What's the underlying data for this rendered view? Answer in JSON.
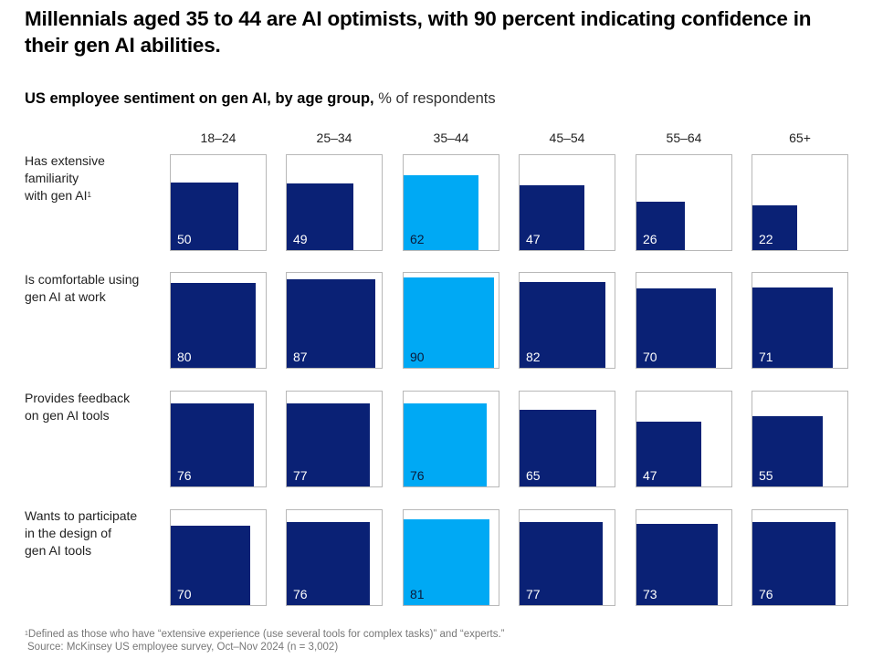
{
  "title": "Millennials aged 35 to 44 are AI optimists, with 90 percent indicating confidence in their gen AI abilities.",
  "subtitle": {
    "bold": "US employee sentiment on gen AI, by age group,",
    "unit": "% of respondents"
  },
  "colors": {
    "default": "#0a2175",
    "highlight": "#00a9f4",
    "label_on_default": "#ffffff",
    "label_on_highlight": "#0a1a3a",
    "cell_border": "#b8b8b8"
  },
  "chart_data": {
    "type": "heatmap",
    "encoding": "area-proportional squares (100% = full cell)",
    "title": "US employee sentiment on gen AI, by age group",
    "unit": "% of respondents",
    "categories": [
      "18–24",
      "25–34",
      "35–44",
      "45–54",
      "55–64",
      "65+"
    ],
    "highlight_category": "35–44",
    "rows": [
      {
        "label": "Has extensive familiarity with gen AI",
        "footnote_marker": "1",
        "values": [
          50,
          49,
          62,
          47,
          26,
          22
        ]
      },
      {
        "label": "Is comfortable using gen AI at work",
        "footnote_marker": "",
        "values": [
          80,
          87,
          90,
          82,
          70,
          71
        ]
      },
      {
        "label": "Provides feedback on gen AI tools",
        "footnote_marker": "",
        "values": [
          76,
          77,
          76,
          65,
          47,
          55
        ]
      },
      {
        "label": "Wants to participate in the design of gen AI tools",
        "footnote_marker": "",
        "values": [
          70,
          76,
          81,
          77,
          73,
          76
        ]
      }
    ],
    "value_range": [
      0,
      100
    ]
  },
  "row_label_lines": [
    [
      "Has extensive",
      "familiarity",
      "with gen AI"
    ],
    [
      "Is comfortable using",
      "gen AI at work"
    ],
    [
      "Provides feedback",
      "on gen AI tools"
    ],
    [
      "Wants to participate",
      "in the design of",
      "gen AI tools"
    ]
  ],
  "footnotes": {
    "note_marker": "1",
    "note": "Defined as those who have “extensive experience (use several tools for complex tasks)” and “experts.”",
    "source": "Source: McKinsey US employee survey, Oct–Nov 2024 (n = 3,002)"
  }
}
